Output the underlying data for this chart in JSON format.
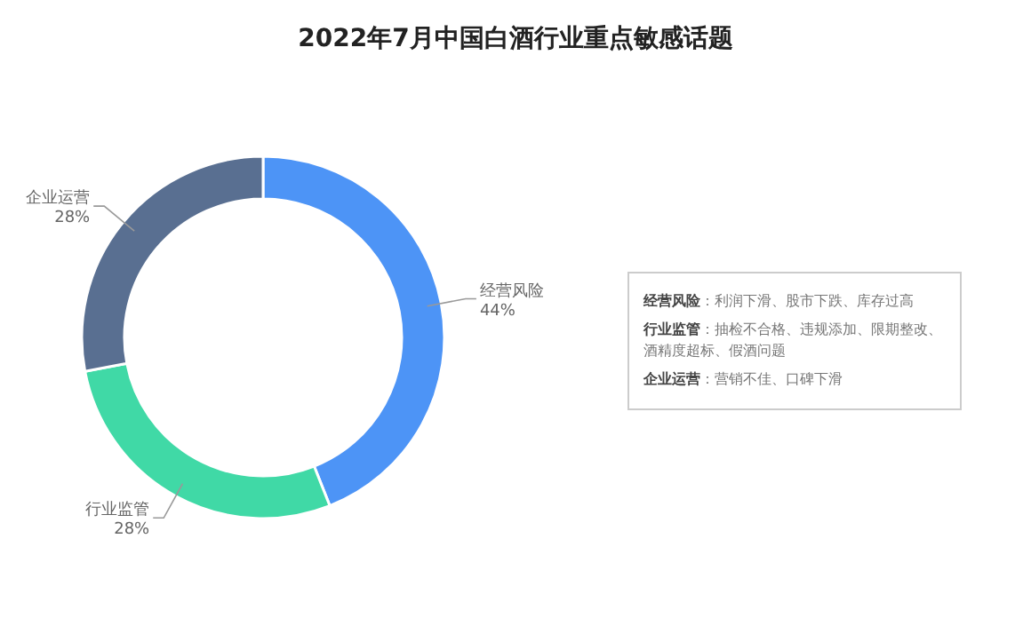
{
  "chart_data": {
    "type": "donut",
    "title": "2022年7月中国白酒行业重点敏感话题",
    "categories": [
      "经营风险",
      "行业监管",
      "企业运营"
    ],
    "values": [
      44,
      28,
      28
    ],
    "colors": [
      "#4d94f6",
      "#40d9a6",
      "#596f91"
    ],
    "value_labels": [
      "44%",
      "28%",
      "28%"
    ],
    "annotations": [
      "**经营风险**：利润下滑、股市下跌、库存过高",
      "**行业监管**：抽检不合格、违规添加、限期整改、酒精度超标、假酒问题",
      "**企业运营**：营销不佳、口碑下滑"
    ]
  }
}
